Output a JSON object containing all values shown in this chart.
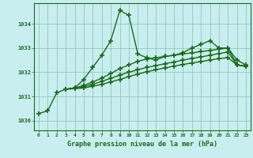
{
  "xlabel": "Graphe pression niveau de la mer (hPa)",
  "background_color": "#c8eef0",
  "grid_color": "#90c8b8",
  "line_color": "#1a6b1a",
  "xlim": [
    -0.5,
    23.5
  ],
  "ylim": [
    1029.6,
    1034.85
  ],
  "yticks": [
    1030,
    1031,
    1032,
    1033,
    1034
  ],
  "xticks": [
    0,
    1,
    2,
    3,
    4,
    5,
    6,
    7,
    8,
    9,
    10,
    11,
    12,
    13,
    14,
    15,
    16,
    17,
    18,
    19,
    20,
    21,
    22,
    23
  ],
  "line1_x": [
    0,
    1,
    2,
    3,
    4,
    5,
    6,
    7,
    8,
    9,
    10,
    11,
    12,
    13,
    14,
    15,
    16,
    17,
    18,
    19,
    20,
    21,
    22,
    23
  ],
  "line1_y": [
    1030.3,
    1030.4,
    1031.15,
    1031.3,
    1031.35,
    1031.7,
    1032.2,
    1032.7,
    1033.3,
    1034.55,
    1034.35,
    1032.75,
    1032.6,
    1032.5,
    1032.65,
    1032.7,
    1032.8,
    1033.0,
    1033.15,
    1033.3,
    1033.0,
    1033.0,
    1032.5,
    1032.3
  ],
  "line2_x": [
    3,
    4,
    5,
    6,
    7,
    8,
    9,
    10,
    11,
    12,
    13,
    14,
    15,
    16,
    17,
    18,
    19,
    20,
    21,
    22,
    23
  ],
  "line2_y": [
    1031.3,
    1031.35,
    1031.45,
    1031.6,
    1031.75,
    1031.95,
    1032.15,
    1032.3,
    1032.45,
    1032.55,
    1032.6,
    1032.65,
    1032.7,
    1032.75,
    1032.8,
    1032.85,
    1032.9,
    1032.95,
    1033.0,
    1032.3,
    1032.25
  ],
  "line3_x": [
    3,
    4,
    5,
    6,
    7,
    8,
    9,
    10,
    11,
    12,
    13,
    14,
    15,
    16,
    17,
    18,
    19,
    20,
    21,
    22,
    23
  ],
  "line3_y": [
    1031.3,
    1031.35,
    1031.4,
    1031.5,
    1031.62,
    1031.75,
    1031.88,
    1032.0,
    1032.1,
    1032.2,
    1032.27,
    1032.35,
    1032.42,
    1032.5,
    1032.57,
    1032.63,
    1032.7,
    1032.77,
    1032.83,
    1032.3,
    1032.25
  ],
  "line4_x": [
    3,
    4,
    5,
    6,
    7,
    8,
    9,
    10,
    11,
    12,
    13,
    14,
    15,
    16,
    17,
    18,
    19,
    20,
    21,
    22,
    23
  ],
  "line4_y": [
    1031.3,
    1031.32,
    1031.35,
    1031.42,
    1031.5,
    1031.6,
    1031.7,
    1031.82,
    1031.92,
    1032.02,
    1032.1,
    1032.18,
    1032.25,
    1032.32,
    1032.38,
    1032.44,
    1032.5,
    1032.56,
    1032.6,
    1032.3,
    1032.25
  ]
}
